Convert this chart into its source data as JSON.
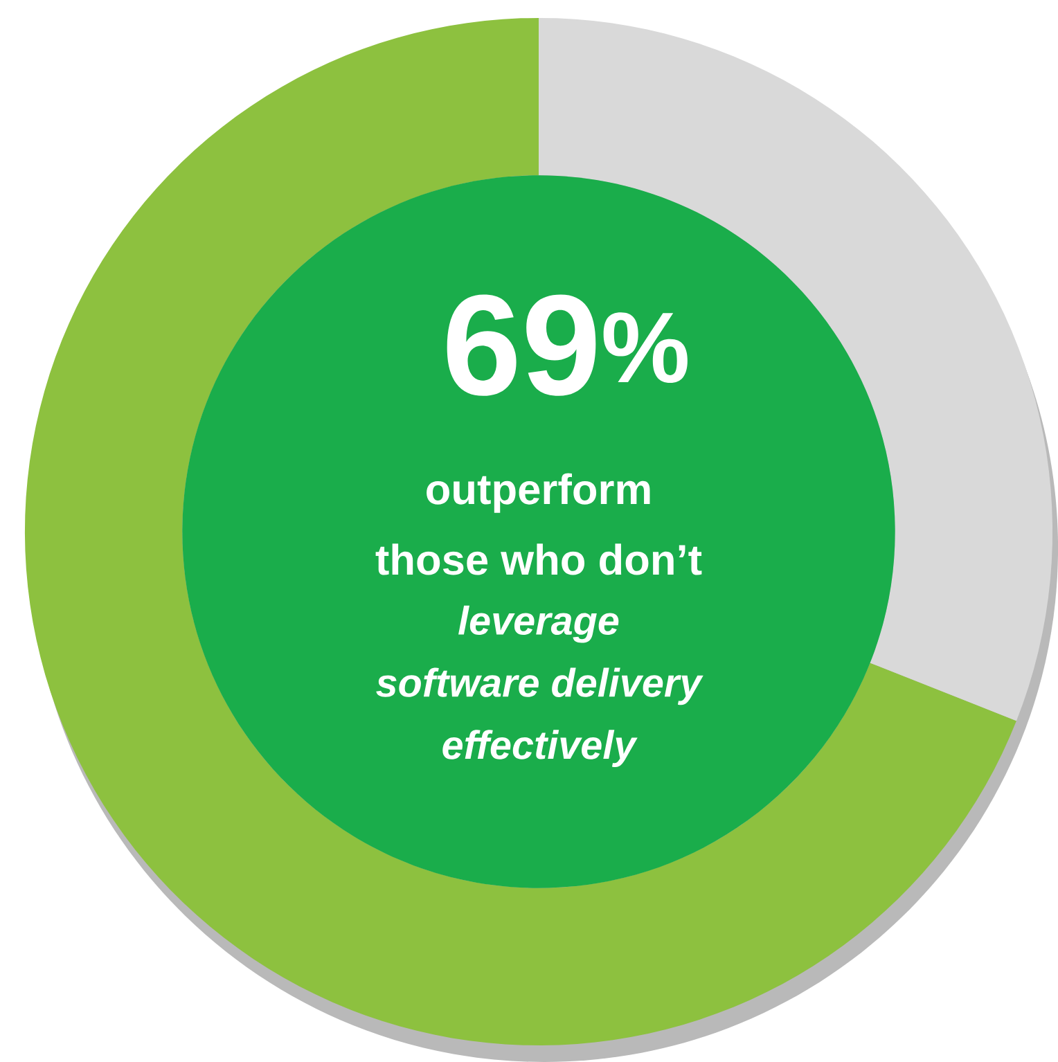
{
  "chart_data": {
    "type": "donut",
    "categories": [
      null,
      null
    ],
    "values": [
      69,
      31
    ],
    "colors": [
      "#8dc13f",
      "#d9d9d9"
    ],
    "annotations": [
      "69$^{%}$",
      "outperform",
      "those who don’t",
      "leverage",
      "software delivery",
      "effectively"
    ]
  }
}
